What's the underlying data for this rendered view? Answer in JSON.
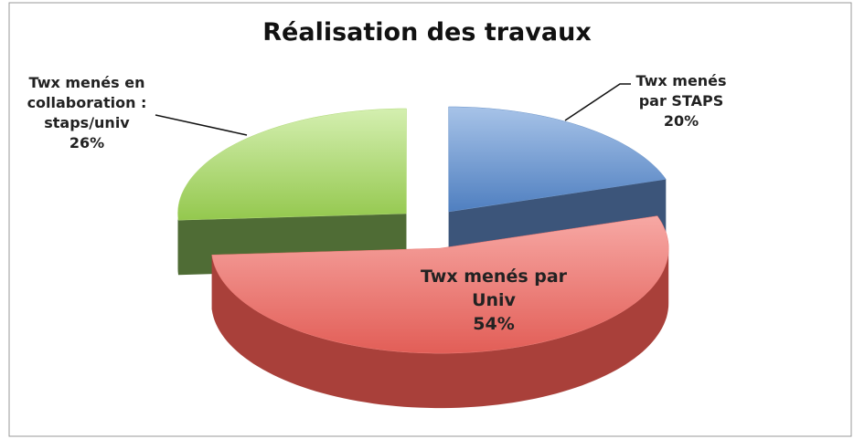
{
  "chart_data": {
    "type": "pie",
    "title": "Réalisation des travaux",
    "categories": [
      "Twx menés par STAPS",
      "Twx menés par Univ",
      "Twx menés en collaboration : staps/univ"
    ],
    "values": [
      20,
      54,
      26
    ],
    "value_labels": [
      "20%",
      "54%",
      "26%"
    ],
    "colors": [
      "#6d95c9",
      "#ea7a74",
      "#b1d978"
    ]
  }
}
